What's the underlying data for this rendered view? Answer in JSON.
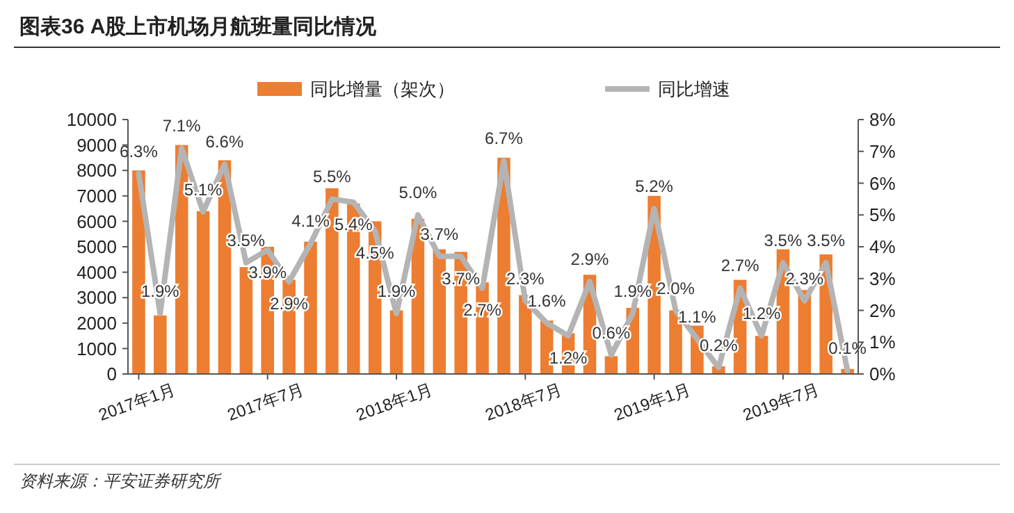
{
  "chart_data": {
    "type": "bar",
    "title": "图表36   A股上市机场月航班量同比情况",
    "categories": [
      "2017年1月",
      null,
      null,
      null,
      null,
      null,
      "2017年7月",
      null,
      null,
      null,
      null,
      null,
      "2018年1月",
      null,
      null,
      null,
      null,
      null,
      "2018年7月",
      null,
      null,
      null,
      null,
      null,
      "2019年1月",
      null,
      null,
      null,
      null,
      null,
      "2019年7月",
      null,
      null,
      null
    ],
    "series": [
      {
        "name": "同比增量（架次）",
        "color": "#ed7d31",
        "values": [
          8000,
          2300,
          9000,
          6400,
          8400,
          4200,
          5000,
          3700,
          5200,
          7300,
          6700,
          6000,
          2500,
          6100,
          4900,
          4800,
          3600,
          8500,
          3100,
          2100,
          1600,
          3900,
          700,
          2600,
          7000,
          2500,
          1900,
          300,
          3700,
          1500,
          4900,
          3300,
          4700,
          200
        ]
      },
      {
        "name": "同比增速",
        "type": "line",
        "axis": "y2",
        "color": "#b4b4b4",
        "marker": "none",
        "values": [
          6.3,
          1.9,
          7.1,
          5.1,
          6.6,
          3.5,
          3.9,
          2.9,
          4.1,
          5.5,
          5.4,
          4.5,
          1.9,
          5.0,
          3.7,
          3.7,
          2.7,
          6.7,
          2.3,
          1.6,
          1.2,
          2.9,
          0.6,
          1.9,
          5.2,
          2.0,
          1.1,
          0.2,
          2.7,
          1.2,
          3.5,
          2.3,
          3.5,
          0.1
        ],
        "value_labels": [
          "6.3%",
          "1.9%",
          "7.1%",
          "5.1%",
          "6.6%",
          "3.5%",
          "3.9%",
          "2.9%",
          "4.1%",
          "5.5%",
          "5.4%",
          "4.5%",
          "1.9%",
          "5.0%",
          "3.7%",
          "3.7%",
          "2.7%",
          "6.7%",
          "2.3%",
          "1.6%",
          "1.2%",
          "2.9%",
          "0.6%",
          "1.9%",
          "5.2%",
          "2.0%",
          "1.1%",
          "0.2%",
          "2.7%",
          "1.2%",
          "3.5%",
          "2.3%",
          "3.5%",
          "0.1%"
        ]
      }
    ],
    "ylim": [
      0,
      10000
    ],
    "yticks": [
      0,
      1000,
      2000,
      3000,
      4000,
      5000,
      6000,
      7000,
      8000,
      9000,
      10000
    ],
    "y2lim": [
      0,
      8
    ],
    "y2ticks": [
      {
        "value": 0,
        "label": "0%"
      },
      {
        "value": 1,
        "label": "1%"
      },
      {
        "value": 2,
        "label": "2%"
      },
      {
        "value": 3,
        "label": "3%"
      },
      {
        "value": 4,
        "label": "4%"
      },
      {
        "value": 5,
        "label": "5%"
      },
      {
        "value": 6,
        "label": "6%"
      },
      {
        "value": 7,
        "label": "7%"
      },
      {
        "value": 8,
        "label": "8%"
      }
    ],
    "legend": "top",
    "grid": false,
    "annotations": [
      "资料来源：平安证券研究所"
    ]
  }
}
